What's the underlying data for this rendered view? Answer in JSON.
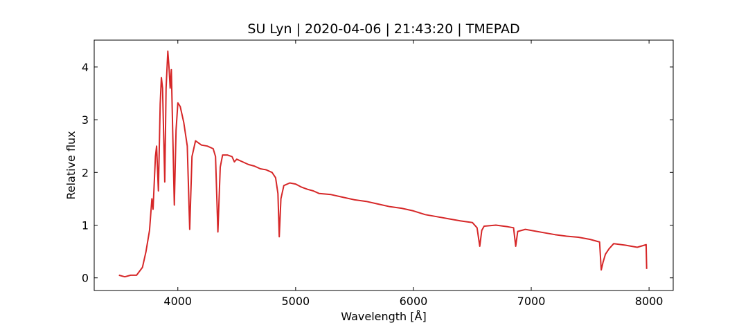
{
  "chart_data": {
    "type": "line",
    "title": "SU Lyn | 2020-04-06 | 21:43:20 | TMEPAD",
    "xlabel": "Wavelength [Å]",
    "ylabel": "Relative flux",
    "x": [
      3500,
      3550,
      3600,
      3650,
      3700,
      3730,
      3760,
      3780,
      3790,
      3810,
      3820,
      3835,
      3850,
      3860,
      3870,
      3889,
      3900,
      3915,
      3925,
      3935,
      3945,
      3970,
      3985,
      4000,
      4020,
      4050,
      4080,
      4101,
      4120,
      4150,
      4200,
      4250,
      4300,
      4320,
      4340,
      4360,
      4380,
      4420,
      4460,
      4480,
      4500,
      4550,
      4600,
      4650,
      4700,
      4750,
      4800,
      4830,
      4850,
      4861,
      4875,
      4900,
      4950,
      5000,
      5050,
      5100,
      5150,
      5200,
      5300,
      5400,
      5500,
      5600,
      5700,
      5800,
      5900,
      6000,
      6100,
      6200,
      6300,
      6400,
      6500,
      6540,
      6563,
      6580,
      6600,
      6700,
      6800,
      6850,
      6868,
      6885,
      6950,
      7000,
      7100,
      7200,
      7300,
      7400,
      7500,
      7580,
      7594,
      7610,
      7630,
      7660,
      7700,
      7800,
      7900,
      7960,
      7975,
      7980
    ],
    "series": [
      {
        "name": "SU Lyn",
        "color": "#d62728",
        "values": [
          0.05,
          0.02,
          0.05,
          0.05,
          0.2,
          0.5,
          0.9,
          1.5,
          1.3,
          2.3,
          2.5,
          1.65,
          3.3,
          3.8,
          3.6,
          1.82,
          3.6,
          4.3,
          4.0,
          3.6,
          3.95,
          1.38,
          2.8,
          3.32,
          3.25,
          2.95,
          2.5,
          0.92,
          2.3,
          2.6,
          2.52,
          2.5,
          2.45,
          2.3,
          0.87,
          2.1,
          2.33,
          2.33,
          2.3,
          2.2,
          2.25,
          2.2,
          2.15,
          2.12,
          2.07,
          2.05,
          2.0,
          1.9,
          1.6,
          0.78,
          1.5,
          1.75,
          1.8,
          1.78,
          1.72,
          1.68,
          1.65,
          1.6,
          1.58,
          1.53,
          1.48,
          1.45,
          1.4,
          1.35,
          1.32,
          1.27,
          1.2,
          1.16,
          1.12,
          1.08,
          1.05,
          0.95,
          0.6,
          0.9,
          0.98,
          1.0,
          0.97,
          0.95,
          0.6,
          0.88,
          0.92,
          0.9,
          0.86,
          0.82,
          0.79,
          0.77,
          0.73,
          0.68,
          0.15,
          0.3,
          0.45,
          0.55,
          0.65,
          0.62,
          0.58,
          0.62,
          0.63,
          0.17
        ]
      }
    ],
    "xlim": [
      3290,
      8205
    ],
    "ylim": [
      -0.24,
      4.51
    ],
    "xticks": [
      4000,
      5000,
      6000,
      7000,
      8000
    ],
    "yticks": [
      0,
      1,
      2,
      3,
      4
    ]
  }
}
